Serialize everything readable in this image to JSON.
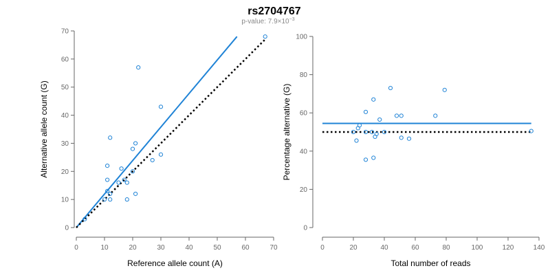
{
  "header": {
    "title": "rs2704767",
    "pvalue_prefix": "p-value: 7.9×10",
    "pvalue_exponent": "−3"
  },
  "colors": {
    "accent": "#1f83d6",
    "reference_line": "#000000",
    "axis": "#666666"
  },
  "chart_data": [
    {
      "type": "scatter",
      "title": "",
      "xlabel": "Reference allele count (A)",
      "ylabel": "Alternative allele count (G)",
      "xlim": [
        0,
        70
      ],
      "ylim": [
        0,
        70
      ],
      "xticks": [
        "0",
        "10",
        "20",
        "30",
        "40",
        "50",
        "60",
        "70"
      ],
      "yticks": [
        "0",
        "10",
        "20",
        "30",
        "40",
        "50",
        "60",
        "70"
      ],
      "grid": false,
      "series": [
        {
          "points": [
            [
              3,
              3
            ],
            [
              10,
              10
            ],
            [
              11,
              13
            ],
            [
              11,
              17
            ],
            [
              11,
              22
            ],
            [
              12,
              10
            ],
            [
              12,
              12
            ],
            [
              12,
              32
            ],
            [
              15,
              16
            ],
            [
              16,
              21
            ],
            [
              17,
              17
            ],
            [
              18,
              16
            ],
            [
              18,
              10
            ],
            [
              20,
              28
            ],
            [
              20,
              20
            ],
            [
              21,
              30
            ],
            [
              21,
              12
            ],
            [
              22,
              57
            ],
            [
              27,
              24
            ],
            [
              30,
              43
            ],
            [
              30,
              26
            ],
            [
              67,
              68
            ]
          ]
        }
      ],
      "lines": [
        {
          "style": "solid",
          "color": "#1f83d6",
          "from": [
            0,
            0
          ],
          "to": [
            57,
            68
          ]
        },
        {
          "style": "dotted",
          "color": "#000000",
          "from": [
            0,
            0
          ],
          "to": [
            67,
            67
          ]
        }
      ]
    },
    {
      "type": "scatter",
      "title": "",
      "xlabel": "Total number of reads",
      "ylabel": "Percentage alternative (G)",
      "xlim": [
        0,
        140
      ],
      "ylim": [
        0,
        100
      ],
      "xticks": [
        "0",
        "20",
        "40",
        "60",
        "80",
        "100",
        "120",
        "140"
      ],
      "yticks": [
        "0",
        "20",
        "40",
        "60",
        "80",
        "100"
      ],
      "grid": false,
      "series": [
        {
          "points": [
            [
              20,
              50
            ],
            [
              22,
              45.5
            ],
            [
              23,
              52
            ],
            [
              24,
              53.5
            ],
            [
              28,
              60.5
            ],
            [
              28,
              35.5
            ],
            [
              28,
              50
            ],
            [
              32,
              50
            ],
            [
              33,
              36.5
            ],
            [
              33,
              67
            ],
            [
              34,
              47.5
            ],
            [
              35,
              49
            ],
            [
              37,
              56.5
            ],
            [
              40,
              50
            ],
            [
              44,
              73
            ],
            [
              48,
              58.5
            ],
            [
              51,
              58.5
            ],
            [
              51,
              47
            ],
            [
              56,
              46.5
            ],
            [
              73,
              58.5
            ],
            [
              79,
              72
            ],
            [
              135,
              50.5
            ]
          ]
        }
      ],
      "lines": [
        {
          "style": "solid",
          "color": "#1f83d6",
          "from": [
            0,
            54.5
          ],
          "to": [
            135,
            54.5
          ]
        },
        {
          "style": "dotted",
          "color": "#000000",
          "from": [
            0,
            50
          ],
          "to": [
            135,
            50
          ]
        }
      ]
    }
  ]
}
